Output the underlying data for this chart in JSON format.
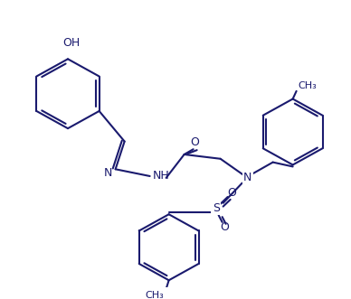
{
  "background_color": "#ffffff",
  "line_color": "#1a1a6e",
  "lw": 1.5,
  "font_size": 9,
  "figw": 3.88,
  "figh": 3.31,
  "dpi": 100,
  "atoms": {
    "OH_label": "OH",
    "N_label": "N",
    "NH_label": "NH",
    "O_carbonyl": "O",
    "S_label": "S",
    "O1_label": "O",
    "O2_label": "O",
    "N2_label": "N",
    "CH3_label": "CH₃",
    "CH3_2_label": "CH₃"
  }
}
